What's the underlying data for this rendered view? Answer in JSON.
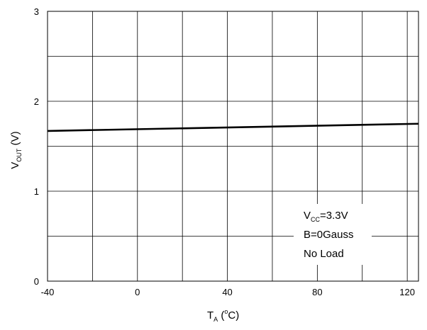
{
  "chart_data": {
    "type": "line",
    "title": "",
    "xlabel": {
      "main": "T",
      "sub": "A",
      "rest_open": " (",
      "sup": "o",
      "rest_close": "C)"
    },
    "ylabel": {
      "main": "V",
      "sub": "OUT",
      "rest": " (V)"
    },
    "xlim": [
      -40,
      125
    ],
    "ylim": [
      0,
      3
    ],
    "x_ticks": [
      -40,
      0,
      40,
      80,
      120
    ],
    "y_ticks": [
      0,
      1,
      2,
      3
    ],
    "x_grid": [
      -40,
      -20,
      0,
      20,
      40,
      60,
      80,
      100,
      120,
      125
    ],
    "y_grid": [
      0,
      0.5,
      1,
      1.5,
      2,
      2.5,
      3
    ],
    "grid": true,
    "series": [
      {
        "name": "",
        "color": "#000000",
        "x": [
          -40,
          125
        ],
        "y": [
          1.67,
          1.75
        ]
      }
    ],
    "annotation": {
      "vcc_main": "V",
      "vcc_sub": "CC",
      "vcc_rest": "=3.3V",
      "line2": "B=0Gauss",
      "line3": "No Load"
    }
  }
}
